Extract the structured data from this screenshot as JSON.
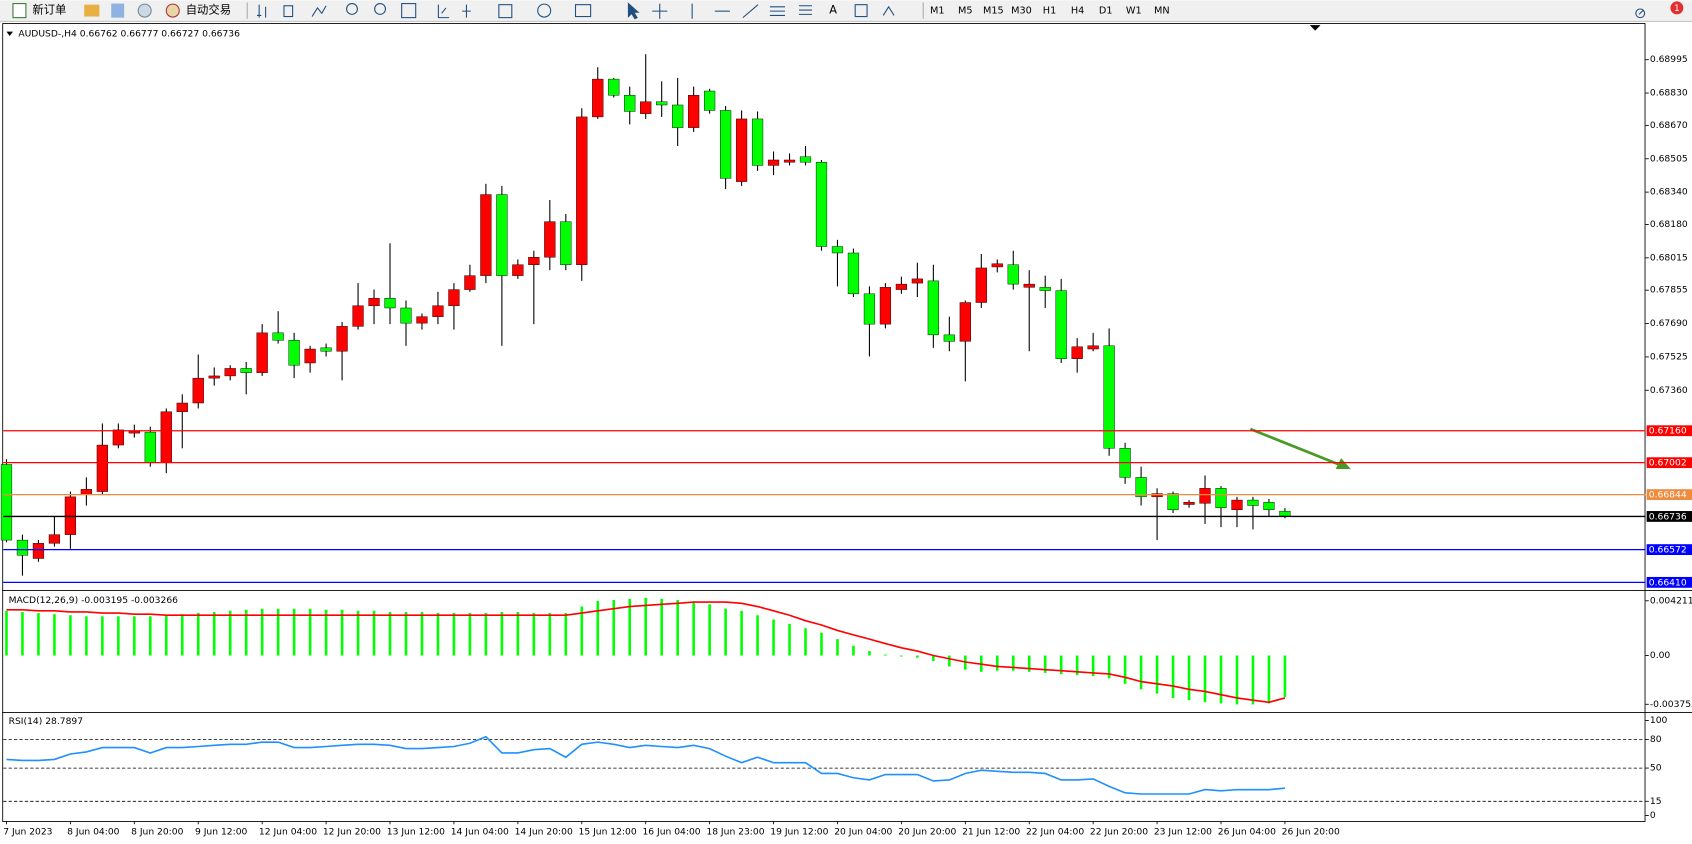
{
  "toolbar": {
    "new_order": "新订单",
    "auto_trading": "自动交易",
    "timeframes": [
      "M1",
      "M5",
      "M15",
      "M30",
      "H1",
      "H4",
      "D1",
      "W1",
      "MN"
    ],
    "notifications": "1"
  },
  "chart_data": [
    {
      "type": "candlestick",
      "title": "AUDUSD-,H4  0.66762 0.66777 0.66727 0.66736",
      "up_color": "#ff0000",
      "down_color": "#00ff00",
      "wick_color": "#000000",
      "categories": [
        "7 Jun 2023",
        null,
        null,
        null,
        "8 Jun 04:00",
        null,
        null,
        null,
        "8 Jun 20:00",
        null,
        null,
        null,
        "9 Jun 12:00",
        null,
        null,
        null,
        "12 Jun 04:00",
        null,
        null,
        null,
        "12 Jun 20:00",
        null,
        null,
        null,
        "13 Jun 12:00",
        null,
        null,
        null,
        "14 Jun 04:00",
        null,
        null,
        null,
        "14 Jun 20:00",
        null,
        null,
        null,
        "15 Jun 12:00",
        null,
        null,
        null,
        "16 Jun 04:00",
        null,
        null,
        null,
        "18 Jun 23:00",
        null,
        null,
        null,
        "19 Jun 12:00",
        null,
        null,
        null,
        "20 Jun 04:00",
        null,
        null,
        null,
        "20 Jun 20:00",
        null,
        null,
        null,
        "21 Jun 12:00",
        null,
        null,
        null,
        "22 Jun 04:00",
        null,
        null,
        null,
        "22 Jun 20:00",
        null,
        null,
        null,
        "23 Jun 12:00",
        null,
        null,
        null,
        "26 Jun 04:00",
        null,
        null,
        null,
        "26 Jun 20:00"
      ],
      "open": [
        0.66993,
        0.66619,
        0.66528,
        0.66603,
        0.66646,
        0.66843,
        0.66859,
        0.67089,
        0.67148,
        0.67153,
        0.67003,
        0.67254,
        0.67297,
        0.6742,
        0.67431,
        0.67468,
        0.67447,
        0.67644,
        0.67607,
        0.67495,
        0.6757,
        0.67553,
        0.67676,
        0.67778,
        0.67815,
        0.67767,
        0.67692,
        0.67724,
        0.67778,
        0.67858,
        0.67927,
        0.68328,
        0.67927,
        0.67981,
        0.68018,
        0.68194,
        0.67981,
        0.68712,
        0.68899,
        0.68819,
        0.68728,
        0.68787,
        0.68771,
        0.68659,
        0.6884,
        0.68744,
        0.68392,
        0.68702,
        0.68472,
        0.68488,
        0.68515,
        0.68488,
        0.68071,
        0.68039,
        0.67837,
        0.67687,
        0.67858,
        0.6789,
        0.67901,
        0.67634,
        0.67602,
        0.67794,
        0.6797,
        0.67981,
        0.67869,
        0.67869,
        0.67853,
        0.67516,
        0.67564,
        0.6758,
        0.67073,
        0.66929,
        0.66833,
        0.66849,
        0.66795,
        0.66801,
        0.66875,
        0.66769,
        0.66817,
        0.66806,
        0.66762
      ],
      "high": [
        0.67019,
        0.66646,
        0.66619,
        0.66736,
        0.66859,
        0.66929,
        0.67196,
        0.67196,
        0.6719,
        0.6718,
        0.6727,
        0.6734,
        0.67537,
        0.67473,
        0.67484,
        0.675,
        0.67687,
        0.67751,
        0.67644,
        0.6758,
        0.67591,
        0.67698,
        0.6789,
        0.67858,
        0.68087,
        0.67804,
        0.6774,
        0.67847,
        0.6789,
        0.67981,
        0.68381,
        0.68371,
        0.68007,
        0.6805,
        0.68301,
        0.68232,
        0.68755,
        0.68958,
        0.68905,
        0.68862,
        0.69022,
        0.68888,
        0.68905,
        0.68862,
        0.68851,
        0.68766,
        0.68744,
        0.68739,
        0.68541,
        0.68531,
        0.68568,
        0.68499,
        0.68104,
        0.68061,
        0.67874,
        0.6789,
        0.67922,
        0.67991,
        0.67981,
        0.67724,
        0.67804,
        0.68034,
        0.68007,
        0.6805,
        0.67954,
        0.67927,
        0.67911,
        0.67618,
        0.67644,
        0.67666,
        0.671,
        0.66982,
        0.66875,
        0.66859,
        0.66817,
        0.66939,
        0.66886,
        0.66833,
        0.66833,
        0.66822,
        0.66777
      ],
      "low": [
        0.66608,
        0.66443,
        0.66512,
        0.66587,
        0.66576,
        0.6679,
        0.66843,
        0.67073,
        0.67126,
        0.66982,
        0.6695,
        0.67073,
        0.6727,
        0.67383,
        0.67409,
        0.6734,
        0.67431,
        0.67591,
        0.6742,
        0.67447,
        0.67527,
        0.67409,
        0.6766,
        0.67687,
        0.67687,
        0.6758,
        0.6766,
        0.67687,
        0.6766,
        0.67847,
        0.6789,
        0.6758,
        0.67911,
        0.67687,
        0.67954,
        0.67954,
        0.67901,
        0.68702,
        0.68808,
        0.68675,
        0.68702,
        0.68712,
        0.68568,
        0.68638,
        0.68728,
        0.68355,
        0.68371,
        0.68445,
        0.68424,
        0.68472,
        0.68472,
        0.6805,
        0.67874,
        0.67821,
        0.67527,
        0.67666,
        0.67837,
        0.67821,
        0.6757,
        0.67553,
        0.67404,
        0.67767,
        0.67943,
        0.67858,
        0.67553,
        0.67767,
        0.67495,
        0.67447,
        0.67553,
        0.67036,
        0.66897,
        0.6679,
        0.66619,
        0.66753,
        0.66779,
        0.66699,
        0.66683,
        0.66683,
        0.66672,
        0.66736,
        0.66727
      ],
      "close": [
        0.66619,
        0.66544,
        0.66603,
        0.66646,
        0.66833,
        0.6687,
        0.67089,
        0.67164,
        0.67158,
        0.67003,
        0.67254,
        0.67297,
        0.6742,
        0.67431,
        0.67468,
        0.67447,
        0.67644,
        0.67607,
        0.67484,
        0.67564,
        0.67553,
        0.67676,
        0.67778,
        0.67815,
        0.67767,
        0.67692,
        0.67724,
        0.67778,
        0.67858,
        0.67927,
        0.68328,
        0.67927,
        0.67981,
        0.68018,
        0.68194,
        0.67981,
        0.68712,
        0.68899,
        0.68819,
        0.68739,
        0.68787,
        0.68771,
        0.68659,
        0.68819,
        0.68744,
        0.68408,
        0.68702,
        0.68472,
        0.68499,
        0.68499,
        0.68488,
        0.68071,
        0.68039,
        0.67837,
        0.67687,
        0.67869,
        0.67885,
        0.67911,
        0.67634,
        0.67602,
        0.67794,
        0.67965,
        0.67986,
        0.67885,
        0.67885,
        0.67853,
        0.67516,
        0.67575,
        0.6758,
        0.67073,
        0.66929,
        0.66833,
        0.66849,
        0.66769,
        0.66806,
        0.66875,
        0.66779,
        0.66817,
        0.6679,
        0.66769,
        0.66736
      ],
      "ylim": [
        0.66378,
        0.69171
      ],
      "yticks": [
        {
          "value": 0.68995,
          "label": "0.68995"
        },
        {
          "value": 0.6883,
          "label": "0.68830"
        },
        {
          "value": 0.6867,
          "label": "0.68670"
        },
        {
          "value": 0.68505,
          "label": "0.68505"
        },
        {
          "value": 0.6834,
          "label": "0.68340"
        },
        {
          "value": 0.6818,
          "label": "0.68180"
        },
        {
          "value": 0.68015,
          "label": "0.68015"
        },
        {
          "value": 0.67855,
          "label": "0.67855"
        },
        {
          "value": 0.6769,
          "label": "0.67690"
        },
        {
          "value": 0.67525,
          "label": "0.67525"
        },
        {
          "value": 0.6736,
          "label": "0.67360"
        }
      ],
      "levels": [
        {
          "value": 0.6716,
          "label": "0.67160",
          "color": "#ff0000"
        },
        {
          "value": 0.67002,
          "label": "0.67002",
          "color": "#ff0000"
        },
        {
          "value": 0.66844,
          "label": "0.66844",
          "color": "#f08a3c"
        },
        {
          "value": 0.66736,
          "label": "0.66736",
          "color": "#000000"
        },
        {
          "value": 0.66572,
          "label": "0.66572",
          "color": "#0000ff"
        },
        {
          "value": 0.6641,
          "label": "0.66410",
          "color": "#0000ff"
        }
      ]
    },
    {
      "type": "macd",
      "title": "MACD(12,26,9) -0.003195 -0.003266",
      "series": [
        {
          "color": "#00ff00",
          "values": [
            0.00344,
            0.00335,
            0.00327,
            0.00318,
            0.0031,
            0.00302,
            0.00302,
            0.00302,
            0.00302,
            0.00302,
            0.0031,
            0.00318,
            0.00327,
            0.00335,
            0.00344,
            0.00352,
            0.0036,
            0.0036,
            0.0036,
            0.0036,
            0.00352,
            0.00352,
            0.00344,
            0.00344,
            0.00335,
            0.00335,
            0.00335,
            0.00327,
            0.00327,
            0.00327,
            0.00327,
            0.00335,
            0.00335,
            0.00327,
            0.00327,
            0.00327,
            0.00377,
            0.00419,
            0.00427,
            0.00436,
            0.00444,
            0.00436,
            0.00427,
            0.00411,
            0.00394,
            0.0036,
            0.00344,
            0.0031,
            0.00277,
            0.00243,
            0.0021,
            0.00176,
            0.00126,
            0.00075,
            0.00034,
            8e-05,
            -8e-05,
            -0.00017,
            -0.00042,
            -0.00084,
            -0.00109,
            -0.00126,
            -0.00117,
            -0.00117,
            -0.00126,
            -0.00134,
            -0.00142,
            -0.00151,
            -0.00159,
            -0.00176,
            -0.00218,
            -0.0026,
            -0.00293,
            -0.00327,
            -0.00344,
            -0.0036,
            -0.00369,
            -0.00377,
            -0.00377,
            -0.00369,
            -0.003195
          ]
        },
        {
          "color": "#ff0000",
          "values": [
            0.00352,
            0.00352,
            0.00344,
            0.00344,
            0.00335,
            0.00335,
            0.00327,
            0.00327,
            0.00318,
            0.00318,
            0.0031,
            0.0031,
            0.0031,
            0.0031,
            0.0031,
            0.0031,
            0.0031,
            0.0031,
            0.0031,
            0.0031,
            0.0031,
            0.0031,
            0.0031,
            0.0031,
            0.0031,
            0.0031,
            0.0031,
            0.0031,
            0.0031,
            0.0031,
            0.0031,
            0.0031,
            0.0031,
            0.0031,
            0.0031,
            0.0031,
            0.00327,
            0.00344,
            0.0036,
            0.00377,
            0.00385,
            0.00394,
            0.00402,
            0.00411,
            0.00411,
            0.00411,
            0.00402,
            0.00377,
            0.00344,
            0.0031,
            0.00268,
            0.00235,
            0.00193,
            0.00159,
            0.00126,
            0.00092,
            0.00059,
            0.00034,
            0,
            -0.00025,
            -0.0005,
            -0.00067,
            -0.00084,
            -0.00092,
            -0.00101,
            -0.00109,
            -0.00117,
            -0.00126,
            -0.00134,
            -0.00142,
            -0.00168,
            -0.00201,
            -0.00218,
            -0.00235,
            -0.0026,
            -0.00277,
            -0.00302,
            -0.00327,
            -0.00344,
            -0.0036,
            -0.003266
          ]
        }
      ],
      "ylim": [
        -0.00426,
        0.0048
      ],
      "yticks": [
        0.004211,
        {
          "value": 0,
          "label": "0.00"
        },
        -0.003755
      ]
    },
    {
      "type": "line",
      "title": "RSI(14) 28.7897",
      "color": "#1e90ff",
      "values": [
        59.1,
        58.0,
        58.0,
        59.1,
        64.8,
        67.0,
        71.6,
        71.6,
        71.6,
        65.9,
        71.6,
        71.6,
        72.7,
        73.9,
        75.0,
        75.0,
        77.3,
        77.3,
        71.6,
        71.6,
        72.7,
        73.9,
        75.0,
        75.0,
        73.9,
        70.5,
        70.5,
        71.6,
        72.7,
        76.1,
        83.0,
        65.9,
        65.9,
        69.3,
        70.5,
        61.4,
        75.0,
        77.3,
        75.0,
        71.6,
        73.9,
        72.7,
        71.6,
        73.9,
        70.5,
        62.5,
        55.7,
        61.4,
        55.7,
        55.7,
        55.7,
        44.3,
        44.3,
        39.8,
        37.5,
        43.2,
        43.2,
        43.2,
        36.4,
        37.5,
        44.3,
        47.7,
        46.6,
        45.5,
        45.5,
        44.3,
        37.5,
        37.5,
        38.6,
        30.7,
        23.9,
        22.7,
        22.7,
        22.7,
        22.7,
        27.3,
        26.1,
        27.3,
        27.3,
        27.3,
        28.7897
      ],
      "ylim": [
        -5.7,
        105.7
      ],
      "yticks": [
        100,
        80,
        50,
        15,
        0
      ],
      "levels": [
        80,
        50,
        15
      ]
    }
  ]
}
